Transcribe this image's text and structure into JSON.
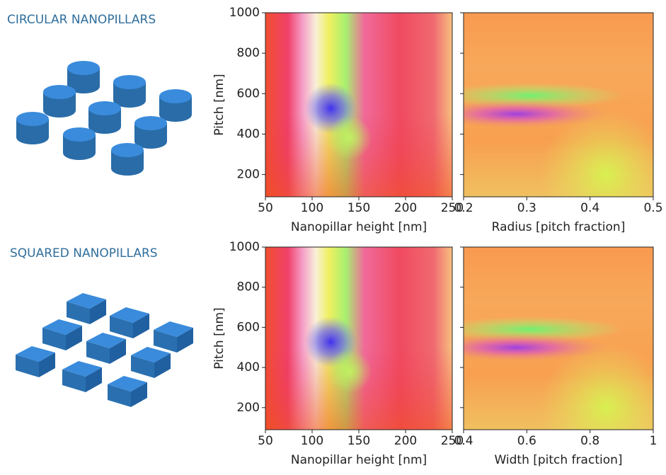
{
  "labels": [
    "CIRCULAR NANOPILLARS",
    "SQUARED NANOPILLARS"
  ],
  "chart_data": [
    {
      "type": "heatmap",
      "xlabel": "Nanopillar height [nm]",
      "ylabel": "Pitch [nm]",
      "xlim": [
        50,
        250
      ],
      "ylim": [
        90,
        1000
      ],
      "xticks": [
        50,
        100,
        150,
        200,
        250
      ],
      "yticks": [
        200,
        400,
        600,
        800,
        1000
      ],
      "show_ytick_labels": true
    },
    {
      "type": "heatmap",
      "xlabel": "Radius [pitch fraction]",
      "xlim": [
        0.2,
        0.5
      ],
      "ylim": [
        90,
        1000
      ],
      "xticks": [
        0.2,
        0.3,
        0.4,
        0.5
      ],
      "yticks": [
        200,
        400,
        600,
        800,
        1000
      ],
      "show_ytick_labels": false
    },
    {
      "type": "heatmap",
      "xlabel": "Nanopillar height [nm]",
      "ylabel": "Pitch [nm]",
      "xlim": [
        50,
        250
      ],
      "ylim": [
        90,
        1000
      ],
      "xticks": [
        50,
        100,
        150,
        200,
        250
      ],
      "yticks": [
        200,
        400,
        600,
        800,
        1000
      ],
      "show_ytick_labels": true
    },
    {
      "type": "heatmap",
      "xlabel": "Width [pitch fraction]",
      "xlim": [
        0.4,
        1
      ],
      "ylim": [
        90,
        1000
      ],
      "xticks": [
        0.4,
        0.6,
        0.8,
        1
      ],
      "yticks": [
        200,
        400,
        600,
        800,
        1000
      ],
      "show_ytick_labels": false
    }
  ]
}
